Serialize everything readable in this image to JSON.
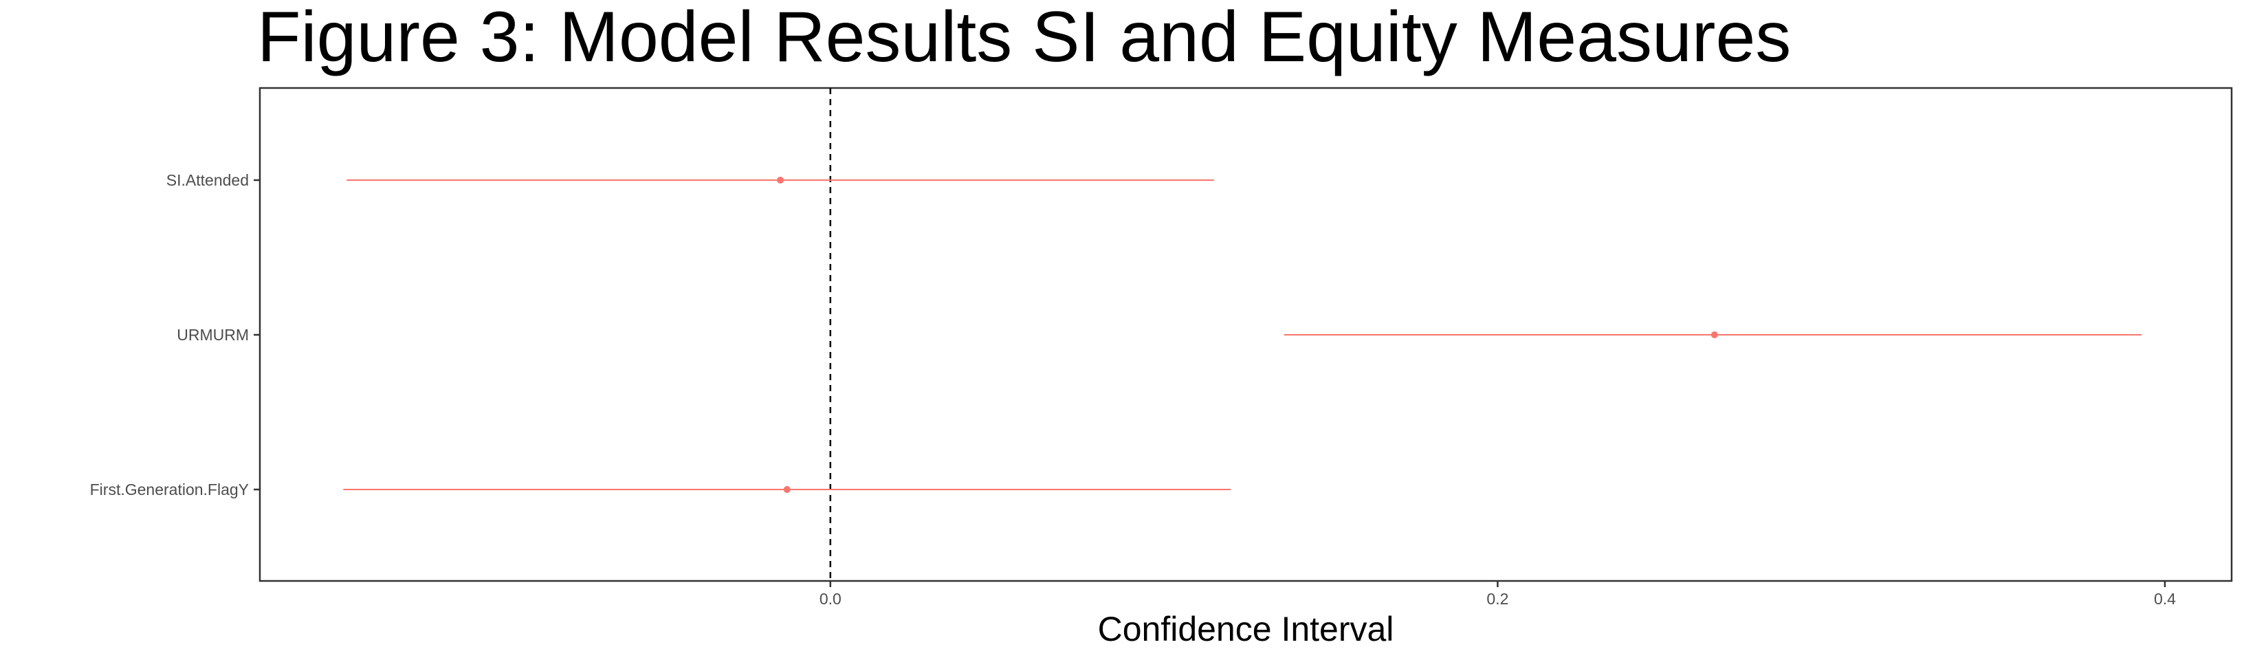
{
  "chart_data": {
    "type": "scatter",
    "subtype": "forest-plot",
    "title": "Figure 3: Model Results SI and Equity Measures",
    "xlabel": "Confidence Interval",
    "ylabel": "",
    "xlim": [
      -0.171,
      0.42
    ],
    "x_ticks": [
      0.0,
      0.2,
      0.4
    ],
    "x_tick_labels": [
      "0.0",
      "0.2",
      "0.4"
    ],
    "reference_line_x": 0.0,
    "reference_line_style": "dashed",
    "grid": false,
    "legend": "none",
    "categories": [
      "SI.Attended",
      "URMURM",
      "First.Generation.FlagY"
    ],
    "series": [
      {
        "estimates": [
          -0.015,
          0.265,
          -0.013
        ],
        "lower": [
          -0.145,
          0.136,
          -0.146
        ],
        "upper": [
          0.115,
          0.393,
          0.12
        ]
      }
    ],
    "color": "#F8766D"
  }
}
